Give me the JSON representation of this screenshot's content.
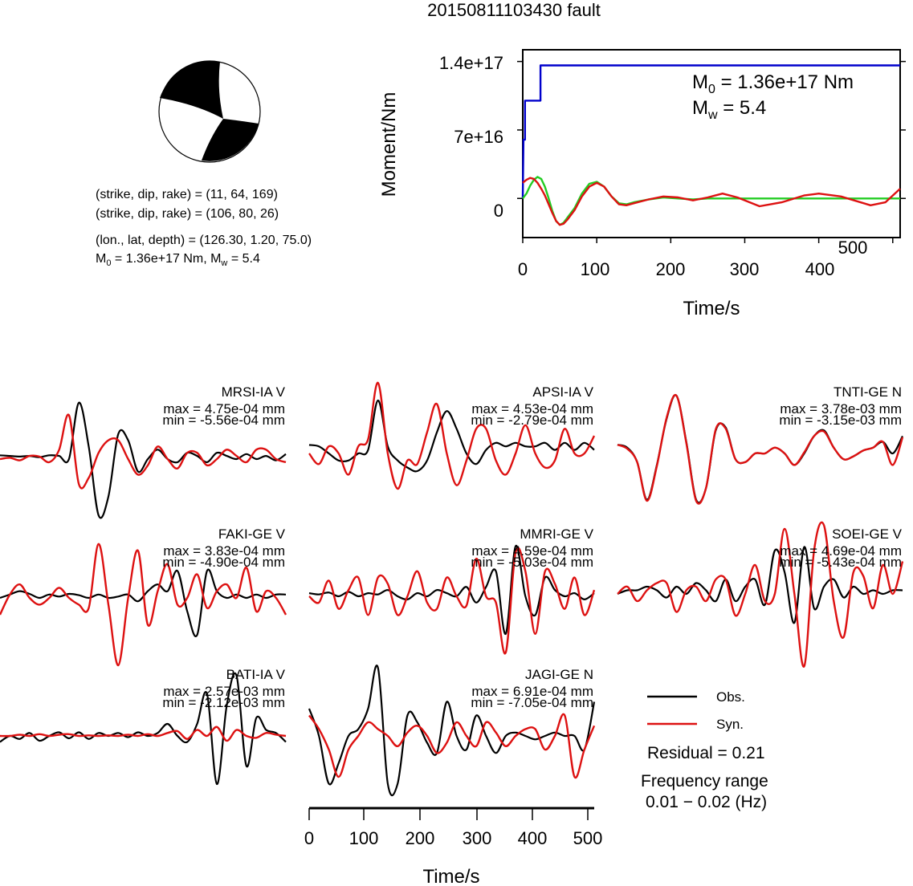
{
  "title": "20150811103430 fault",
  "mechanism": {
    "planes": [
      "(strike, dip, rake) = (11, 64, 169)",
      "(strike, dip, rake) = (106, 80, 26)"
    ],
    "location": "(lon., lat, depth) = (126.30, 1.20, 75.0)",
    "moment_prefix": "M",
    "moment_sub": "0",
    "moment_value": " = 1.36e+17 Nm, M",
    "mw_sub": "w",
    "mw_value": " = 5.4"
  },
  "stf_panel": {
    "ylabel": "Moment/Nm",
    "xlabel": "Time/s",
    "yticks": [
      "0",
      "7e+16",
      "1.4e+17"
    ],
    "xticks": [
      "0",
      "100",
      "200",
      "300",
      "400",
      "500"
    ],
    "m0_prefix": "M",
    "m0_sub": "0",
    "m0_value": " = 1.36e+17 Nm",
    "mw_prefix": "M",
    "mw_sub": "w",
    "mw_value": " = 5.4"
  },
  "waveform_axis": {
    "xlabel": "Time/s",
    "xticks": [
      "0",
      "100",
      "200",
      "300",
      "400",
      "500"
    ]
  },
  "legend": {
    "obs": "Obs.",
    "syn": "Syn.",
    "residual": "Residual = 0.21",
    "freq_label": "Frequency range",
    "freq_value": "0.01 − 0.02 (Hz)"
  },
  "colors": {
    "obs": "#000000",
    "syn": "#dd1111",
    "moment": "#0000cc",
    "stf": "#22cc22"
  },
  "chart_data": [
    {
      "type": "line",
      "id": "moment-function",
      "xlim": [
        0,
        510
      ],
      "ylim": [
        -4e+16,
        1.52e+17
      ],
      "series": [
        {
          "id": "cumulative",
          "x": [
            0,
            1,
            3,
            3,
            24,
            24,
            28,
            28,
            510
          ],
          "y": [
            0,
            6e+16,
            6e+16,
            1e+17,
            1e+17,
            1.36e+17,
            1.36e+17,
            1.36e+17,
            1.36e+17
          ]
        },
        {
          "id": "rate-green",
          "x": [
            0,
            5,
            10,
            15,
            20,
            25,
            30,
            35,
            40,
            45,
            50,
            55,
            60,
            70,
            80,
            90,
            100,
            110,
            120,
            130,
            140,
            150,
            170,
            190,
            210,
            230,
            250,
            300,
            350,
            400,
            450,
            510
          ],
          "y": [
            0,
            5000000000000000.0,
            1.3e+16,
            1.9e+16,
            2.2e+16,
            2e+16,
            1.2e+16,
            0,
            -1.3e+16,
            -2.3e+16,
            -2.7e+16,
            -2.5e+16,
            -2e+16,
            -1e+16,
            5000000000000000.0,
            1.5e+16,
            1.7e+16,
            1.2e+16,
            2000000000000000.0,
            -5000000000000000.0,
            -6000000000000000.0,
            -4000000000000000.0,
            -1000000000000000.0,
            1000000000000000.0,
            0,
            -1000000000000000.0,
            0,
            0,
            0,
            0,
            0,
            0
          ]
        },
        {
          "id": "rate-red",
          "x": [
            0,
            5,
            10,
            15,
            20,
            25,
            30,
            35,
            40,
            45,
            50,
            55,
            60,
            70,
            80,
            90,
            100,
            110,
            120,
            130,
            140,
            150,
            170,
            190,
            210,
            230,
            250,
            270,
            290,
            320,
            350,
            380,
            400,
            430,
            470,
            490,
            510
          ],
          "y": [
            1.6e+16,
            1.9e+16,
            2.1e+16,
            2e+16,
            1.6e+16,
            1e+16,
            3000000000000000.0,
            -6000000000000000.0,
            -1.5e+16,
            -2.3e+16,
            -2.7e+16,
            -2.6e+16,
            -2.2e+16,
            -1.2e+16,
            2000000000000000.0,
            1.2e+16,
            1.6e+16,
            1.2e+16,
            2000000000000000.0,
            -6000000000000000.0,
            -7000000000000000.0,
            -5000000000000000.0,
            -1000000000000000.0,
            2000000000000000.0,
            1000000000000000.0,
            -2000000000000000.0,
            1000000000000000.0,
            5000000000000000.0,
            1000000000000000.0,
            -8000000000000000.0,
            -4000000000000000.0,
            3000000000000000.0,
            5000000000000000.0,
            2000000000000000.0,
            -7000000000000000.0,
            -4000000000000000.0,
            1e+16
          ]
        }
      ]
    },
    {
      "type": "line",
      "station": "MRSI-IA V",
      "max": "max = 4.75e-04 mm",
      "min": "min = -5.56e-04 mm",
      "obs": [
        0.06,
        0.05,
        0.04,
        0.05,
        0.03,
        0.06,
        0.05,
        0.0,
        0.9,
        0.2,
        -0.9,
        -0.6,
        0.4,
        0.3,
        -0.2,
        0.0,
        0.15,
        0.0,
        -0.05,
        0.1,
        0.05,
        -0.05,
        0.1,
        0.05,
        0.0,
        0.08,
        0.0,
        0.05,
        -0.02,
        0.08
      ],
      "syn": [
        0.0,
        0.02,
        -0.02,
        0.05,
        0.04,
        -0.05,
        0.15,
        0.7,
        -0.4,
        -0.3,
        0.1,
        0.3,
        0.3,
        0.0,
        -0.25,
        -0.1,
        0.2,
        0.0,
        -0.15,
        0.1,
        0.1,
        -0.1,
        0.0,
        0.15,
        0.05,
        -0.05,
        0.15,
        0.15,
        0.0,
        -0.05
      ]
    },
    {
      "type": "line",
      "station": "APSI-IA V",
      "max": "max = 4.53e-04 mm",
      "min": "min = -2.79e-04 mm",
      "obs": [
        0.12,
        0.1,
        0.0,
        -0.1,
        -0.1,
        0.0,
        0.05,
        0.75,
        0.1,
        -0.1,
        -0.2,
        -0.25,
        -0.1,
        0.3,
        0.6,
        0.35,
        0.0,
        -0.15,
        0.05,
        0.15,
        0.1,
        0.15,
        0.1,
        0.1,
        0.15,
        0.05,
        0.15,
        0.05,
        0.15,
        0.05
      ],
      "syn": [
        0.0,
        -0.15,
        0.1,
        0.0,
        -0.3,
        0.1,
        0.2,
        1.0,
        0.0,
        -0.5,
        -0.1,
        -0.15,
        0.3,
        0.7,
        0.0,
        -0.45,
        -0.1,
        0.35,
        0.35,
        -0.1,
        -0.3,
        0.0,
        0.4,
        0.0,
        -0.2,
        -0.1,
        0.35,
        0.0,
        0.0,
        0.25
      ]
    },
    {
      "type": "line",
      "station": "TNTI-GE N",
      "max": "max = 3.78e-03 mm",
      "min": "min = -3.15e-03 mm",
      "obs": [
        0.15,
        0.1,
        -0.15,
        -0.8,
        -0.2,
        0.6,
        1.0,
        0.2,
        -0.8,
        -0.6,
        0.4,
        0.45,
        -0.1,
        -0.15,
        0.0,
        0.0,
        0.1,
        0.0,
        -0.2,
        0.0,
        0.3,
        0.4,
        0.1,
        -0.1,
        -0.05,
        0.05,
        0.1,
        0.2,
        0.0,
        0.3
      ],
      "syn": [
        0.15,
        0.08,
        -0.15,
        -0.82,
        -0.22,
        0.62,
        1.0,
        0.18,
        -0.82,
        -0.6,
        0.42,
        0.43,
        -0.1,
        -0.15,
        0.0,
        0.0,
        0.1,
        0.0,
        -0.2,
        0.02,
        0.3,
        0.38,
        0.1,
        -0.1,
        -0.05,
        0.05,
        0.1,
        0.2,
        -0.2,
        0.28
      ]
    },
    {
      "type": "line",
      "station": "FAKI-GE V",
      "max": "max = 3.83e-04 mm",
      "min": "min = -4.90e-04 mm",
      "obs": [
        0.0,
        0.05,
        0.1,
        0.06,
        0.0,
        0.05,
        0.02,
        0.06,
        0.04,
        0.0,
        0.05,
        0.0,
        0.02,
        0.05,
        -0.05,
        0.1,
        0.2,
        0.1,
        0.4,
        -0.2,
        -0.55,
        0.4,
        0.1,
        0.0,
        0.05,
        0.0,
        0.05,
        0.0,
        0.05,
        0.05
      ],
      "syn": [
        -0.25,
        0.05,
        0.2,
        0.0,
        -0.1,
        0.0,
        0.15,
        0.0,
        -0.1,
        -0.15,
        0.8,
        -0.1,
        -1.0,
        0.0,
        0.7,
        -0.4,
        0.1,
        0.5,
        -0.1,
        0.0,
        0.35,
        -0.15,
        0.1,
        0.2,
        0.0,
        0.45,
        -0.2,
        0.1,
        0.0,
        -0.25
      ]
    },
    {
      "type": "line",
      "station": "MMRI-GE V",
      "max": "max = 4.59e-04 mm",
      "min": "min = -5.03e-04 mm",
      "obs": [
        0.05,
        0.03,
        0.06,
        0.0,
        0.07,
        0.0,
        0.05,
        0.03,
        0.1,
        0.0,
        -0.05,
        0.05,
        0.0,
        0.1,
        0.05,
        0.0,
        0.15,
        -0.1,
        0.15,
        0.4,
        -0.6,
        0.8,
        0.0,
        -0.3,
        0.3,
        0.1,
        0.0,
        0.05,
        -0.05,
        0.05
      ],
      "syn": [
        0.0,
        -0.1,
        0.25,
        -0.2,
        0.1,
        0.3,
        -0.3,
        0.3,
        0.2,
        -0.3,
        0.0,
        0.4,
        -0.1,
        -0.2,
        0.3,
        0.0,
        -0.15,
        0.6,
        0.0,
        -0.1,
        -0.9,
        0.7,
        0.4,
        -0.6,
        0.4,
        0.2,
        -0.2,
        0.3,
        -0.3,
        0.1
      ]
    },
    {
      "type": "line",
      "station": "SOEI-GE V",
      "max": "max = 4.69e-04 mm",
      "min": "min = -5.43e-04 mm",
      "obs": [
        0.0,
        0.05,
        0.05,
        0.1,
        0.05,
        -0.05,
        0.1,
        0.0,
        0.15,
        0.05,
        -0.1,
        0.2,
        -0.1,
        0.1,
        0.2,
        -0.15,
        0.6,
        0.3,
        -0.4,
        0.65,
        -0.2,
        0.1,
        0.2,
        -0.05,
        0.1,
        0.0,
        0.05,
        0.0,
        0.05,
        0.05
      ],
      "syn": [
        0.0,
        0.1,
        -0.1,
        0.05,
        0.15,
        0.15,
        -0.25,
        0.05,
        0.1,
        -0.1,
        0.2,
        0.2,
        -0.3,
        0.0,
        0.4,
        -0.1,
        0.0,
        0.9,
        0.0,
        -1.0,
        0.6,
        0.95,
        -0.1,
        -0.6,
        0.3,
        0.25,
        -0.2,
        0.4,
        0.0,
        0.45
      ]
    },
    {
      "type": "line",
      "station": "BATI-IA V",
      "max": "max = 2.57e-03 mm",
      "min": "min = -2.12e-03 mm",
      "obs": [
        -0.1,
        0.0,
        -0.05,
        0.05,
        -0.08,
        0.0,
        0.06,
        -0.04,
        0.06,
        -0.05,
        0.05,
        0.0,
        0.05,
        -0.02,
        0.06,
        0.0,
        0.05,
        0.2,
        0.0,
        -0.1,
        0.2,
        0.7,
        -0.8,
        0.5,
        1.0,
        -0.5,
        0.3,
        0.1,
        0.05,
        -0.1
      ],
      "syn": [
        0.0,
        0.0,
        0.02,
        0.0,
        0.03,
        0.0,
        0.02,
        0.03,
        0.0,
        0.01,
        0.0,
        0.01,
        0.0,
        0.02,
        0.0,
        0.03,
        0.0,
        0.05,
        0.08,
        -0.05,
        0.1,
        0.0,
        0.15,
        -0.08,
        0.1,
        0.0,
        -0.03,
        0.05,
        0.02,
        0.0
      ]
    },
    {
      "type": "line",
      "station": "JAGI-GE N",
      "max": "max = 6.91e-04 mm",
      "min": "min = -7.05e-04 mm",
      "obs": [
        0.4,
        0.0,
        -0.7,
        -0.4,
        0.0,
        0.1,
        0.4,
        1.0,
        -0.7,
        -0.7,
        0.3,
        0.2,
        -0.1,
        -0.25,
        0.5,
        0.0,
        -0.2,
        0.3,
        0.0,
        -0.25,
        0.0,
        0.05,
        0.0,
        -0.05,
        0.0,
        0.05,
        0.0,
        0.0,
        -0.2,
        0.5
      ],
      "syn": [
        0.3,
        0.1,
        -0.2,
        -0.6,
        -0.2,
        0.0,
        0.2,
        0.1,
        0.0,
        -0.15,
        0.05,
        0.15,
        0.0,
        -0.25,
        -0.1,
        0.2,
        0.0,
        -0.15,
        0.2,
        0.05,
        -0.15,
        0.0,
        0.1,
        0.1,
        -0.2,
        0.0,
        0.3,
        -0.6,
        -0.2,
        0.15
      ]
    }
  ]
}
